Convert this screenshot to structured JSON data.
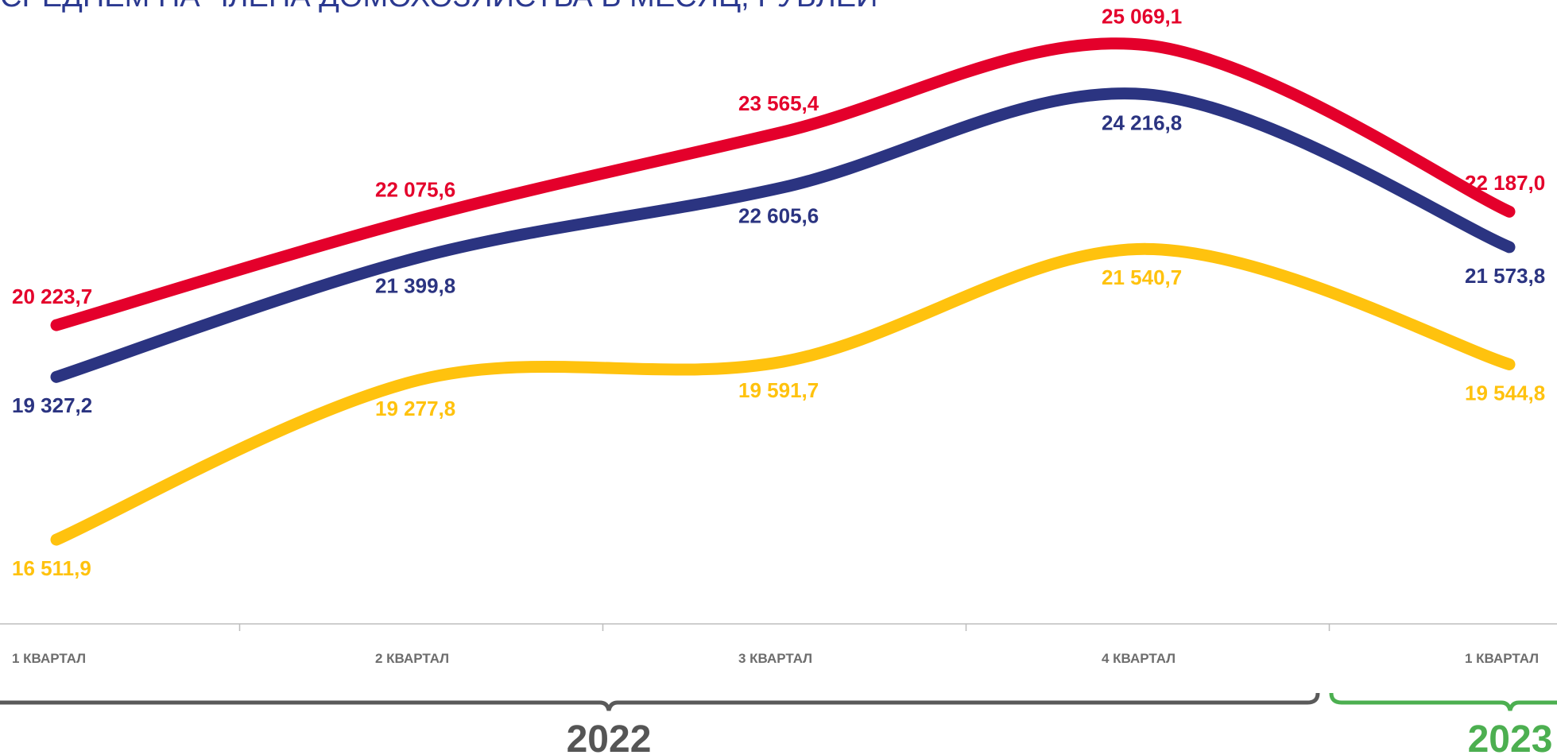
{
  "chart_data": {
    "type": "line",
    "title": "СРЕДНЕМ НА ЧЛЕНА ДОМОХОЗЯЙСТВА В МЕСЯЦ, РУБЛЕЙ",
    "categories": [
      "1 КВАРТАЛ",
      "2 КВАРТАЛ",
      "3 КВАРТАЛ",
      "4 КВАРТАЛ",
      "1 КВАРТАЛ"
    ],
    "year_labels": [
      "2022",
      "2023"
    ],
    "ylim": [
      15000,
      26000
    ],
    "smooth": true,
    "series": [
      {
        "color": "#e4002b",
        "values": [
          20223.7,
          22075.6,
          23565.4,
          25069.1,
          22187.0
        ],
        "value_labels": [
          "20 223,7",
          "22 075,6",
          "23 565,4",
          "25 069,1",
          "22 187,0"
        ]
      },
      {
        "color": "#2b3481",
        "values": [
          19327.2,
          21399.8,
          22605.6,
          24216.8,
          21573.8
        ],
        "value_labels": [
          "19 327,2",
          "21 399,8",
          "22 605,6",
          "24 216,8",
          "21 573,8"
        ]
      },
      {
        "color": "#ffc20e",
        "values": [
          16511.9,
          19277.8,
          19591.7,
          21540.7,
          19544.8
        ],
        "value_labels": [
          "16 511,9",
          "19 277,8",
          "19 591,7",
          "21 540,7",
          "19 544,8"
        ]
      }
    ]
  }
}
